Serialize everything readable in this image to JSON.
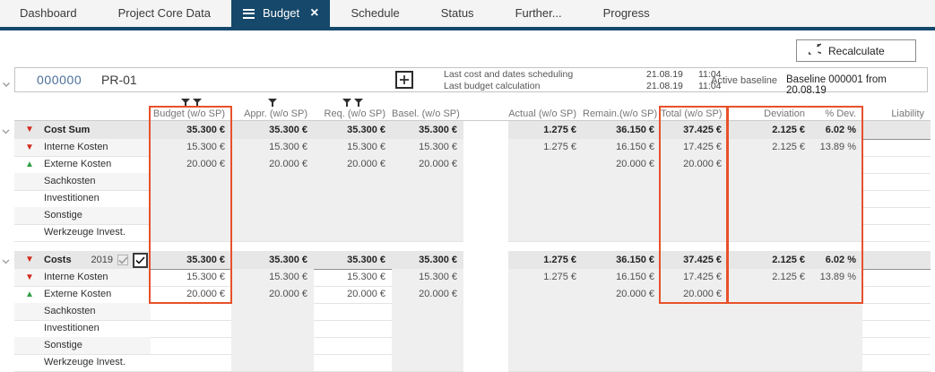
{
  "tabs": [
    {
      "label": "Dashboard",
      "active": false
    },
    {
      "label": "Project Core Data",
      "active": false
    },
    {
      "label": "Budget",
      "active": true
    },
    {
      "label": "Schedule",
      "active": false
    },
    {
      "label": "Status",
      "active": false
    },
    {
      "label": "Further...",
      "active": false
    },
    {
      "label": "Progress",
      "active": false
    }
  ],
  "toolbar": {
    "recalculate_label": "Recalculate"
  },
  "project": {
    "id": "000000",
    "code": "PR-01",
    "info": [
      {
        "label": "Last cost and dates scheduling",
        "date": "21.08.19",
        "time": "11:04"
      },
      {
        "label": "Last budget calculation",
        "date": "21.08.19",
        "time": "11:04"
      }
    ],
    "active_baseline_label": "Active baseline",
    "active_baseline_value": "Baseline 000001 from 20.08.19"
  },
  "colors": {
    "accent_navy": "#15486b",
    "highlight_orange": "#e8512b",
    "negative_red": "#d22a1e",
    "positive_green": "#2f9e41"
  },
  "icons": {
    "active_tab_left": "menu-icon",
    "active_tab_right": "close-icon",
    "filter": "funnel-icon",
    "recalculate": "refresh-icon"
  },
  "table": {
    "columns": [
      {
        "key": "budget",
        "label": "Budget (w/o SP)",
        "filters": 2,
        "highlighted": true
      },
      {
        "key": "appr",
        "label": "Appr. (w/o SP)",
        "filters": 1,
        "highlighted": false
      },
      {
        "key": "req",
        "label": "Req. (w/o SP)",
        "filters": 2,
        "highlighted": false
      },
      {
        "key": "basel",
        "label": "Basel. (w/o SP)",
        "filters": 0,
        "highlighted": false
      },
      {
        "key": "actual",
        "label": "Actual (w/o SP)",
        "filters": 0,
        "highlighted": false
      },
      {
        "key": "remain",
        "label": "Remain.(w/o SP)",
        "filters": 0,
        "highlighted": false
      },
      {
        "key": "total",
        "label": "Total (w/o SP)",
        "filters": 0,
        "highlighted": true
      },
      {
        "key": "deviation",
        "label": "Deviation",
        "filters": 0,
        "highlighted": true
      },
      {
        "key": "pdev",
        "label": "% Dev.",
        "filters": 0,
        "highlighted": true
      },
      {
        "key": "liability",
        "label": "Liability",
        "filters": 0,
        "highlighted": false
      }
    ],
    "groups": [
      {
        "summary": {
          "label": "Cost Sum",
          "trend": "down",
          "values": {
            "budget": "35.300 €",
            "appr": "35.300 €",
            "req": "35.300 €",
            "basel": "35.300 €",
            "actual": "1.275 €",
            "remain": "36.150 €",
            "total": "37.425 €",
            "deviation": "2.125 €",
            "pdev": "6.02 %",
            "liability": ""
          }
        },
        "rows": [
          {
            "label": "Interne Kosten",
            "trend": "down",
            "values": {
              "budget": "15.300 €",
              "appr": "15.300 €",
              "req": "15.300 €",
              "basel": "15.300 €",
              "actual": "1.275 €",
              "remain": "16.150 €",
              "total": "17.425 €",
              "deviation": "2.125 €",
              "pdev": "13.89 %",
              "liability": ""
            }
          },
          {
            "label": "Externe Kosten",
            "trend": "up",
            "values": {
              "budget": "20.000 €",
              "appr": "20.000 €",
              "req": "20.000 €",
              "basel": "20.000 €",
              "actual": "",
              "remain": "20.000 €",
              "total": "20.000 €",
              "deviation": "",
              "pdev": "",
              "liability": ""
            }
          },
          {
            "label": "Sachkosten",
            "trend": null,
            "values": {}
          },
          {
            "label": "Investitionen",
            "trend": null,
            "values": {}
          },
          {
            "label": "Sonstige",
            "trend": null,
            "values": {}
          },
          {
            "label": "Werkzeuge Invest.",
            "trend": null,
            "values": {}
          }
        ]
      },
      {
        "summary": {
          "label": "Costs",
          "year": "2019",
          "trend": "down",
          "checkboxes": [
            {
              "checked": true,
              "disabled": true
            },
            {
              "checked": true,
              "disabled": false
            }
          ],
          "values": {
            "budget": "35.300 €",
            "appr": "35.300 €",
            "req": "35.300 €",
            "basel": "35.300 €",
            "actual": "1.275 €",
            "remain": "36.150 €",
            "total": "37.425 €",
            "deviation": "2.125 €",
            "pdev": "6.02 %",
            "liability": ""
          }
        },
        "rows": [
          {
            "label": "Interne Kosten",
            "trend": "down",
            "values": {
              "budget": "15.300 €",
              "appr": "15.300 €",
              "req": "15.300 €",
              "basel": "15.300 €",
              "actual": "1.275 €",
              "remain": "16.150 €",
              "total": "17.425 €",
              "deviation": "2.125 €",
              "pdev": "13.89 %",
              "liability": ""
            }
          },
          {
            "label": "Externe Kosten",
            "trend": "up",
            "values": {
              "budget": "20.000 €",
              "appr": "20.000 €",
              "req": "20.000 €",
              "basel": "20.000 €",
              "actual": "",
              "remain": "20.000 €",
              "total": "20.000 €",
              "deviation": "",
              "pdev": "",
              "liability": ""
            }
          },
          {
            "label": "Sachkosten",
            "trend": null,
            "values": {}
          },
          {
            "label": "Investitionen",
            "trend": null,
            "values": {}
          },
          {
            "label": "Sonstige",
            "trend": null,
            "values": {}
          },
          {
            "label": "Werkzeuge Invest.",
            "trend": null,
            "values": {}
          }
        ]
      }
    ]
  }
}
